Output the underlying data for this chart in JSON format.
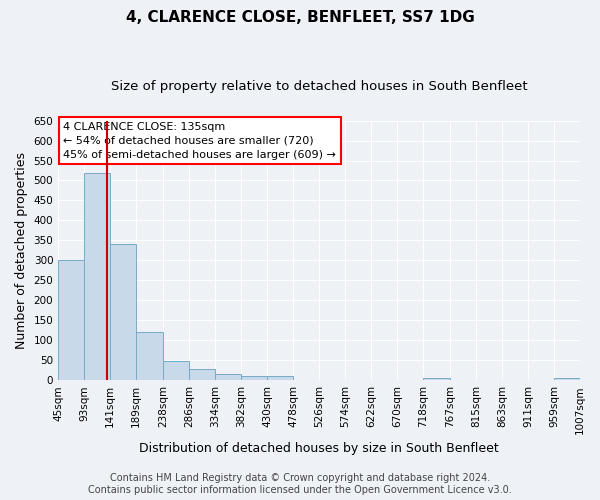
{
  "title": "4, CLARENCE CLOSE, BENFLEET, SS7 1DG",
  "subtitle": "Size of property relative to detached houses in South Benfleet",
  "xlabel": "Distribution of detached houses by size in South Benfleet",
  "ylabel": "Number of detached properties",
  "footer_line1": "Contains HM Land Registry data © Crown copyright and database right 2024.",
  "footer_line2": "Contains public sector information licensed under the Open Government Licence v3.0.",
  "annotation_title": "4 CLARENCE CLOSE: 135sqm",
  "annotation_line1": "← 54% of detached houses are smaller (720)",
  "annotation_line2": "45% of semi-detached houses are larger (609) →",
  "bar_color": "#c8d9ea",
  "bar_edge_color": "#7aaac8",
  "property_line_color": "#cc0000",
  "property_size_sqm": 135,
  "bin_edges": [
    45,
    93,
    141,
    189,
    238,
    286,
    334,
    382,
    430,
    478,
    526,
    574,
    622,
    670,
    718,
    767,
    815,
    863,
    911,
    959,
    1007
  ],
  "bar_heights": [
    300,
    520,
    340,
    120,
    48,
    28,
    15,
    10,
    10,
    0,
    0,
    0,
    0,
    0,
    5,
    0,
    0,
    0,
    0,
    5
  ],
  "ylim": [
    0,
    650
  ],
  "yticks": [
    0,
    50,
    100,
    150,
    200,
    250,
    300,
    350,
    400,
    450,
    500,
    550,
    600,
    650
  ],
  "background_color": "#eef2f7",
  "grid_color": "#ffffff",
  "title_fontsize": 11,
  "subtitle_fontsize": 9.5,
  "axis_label_fontsize": 9,
  "tick_fontsize": 7.5,
  "footer_fontsize": 7
}
